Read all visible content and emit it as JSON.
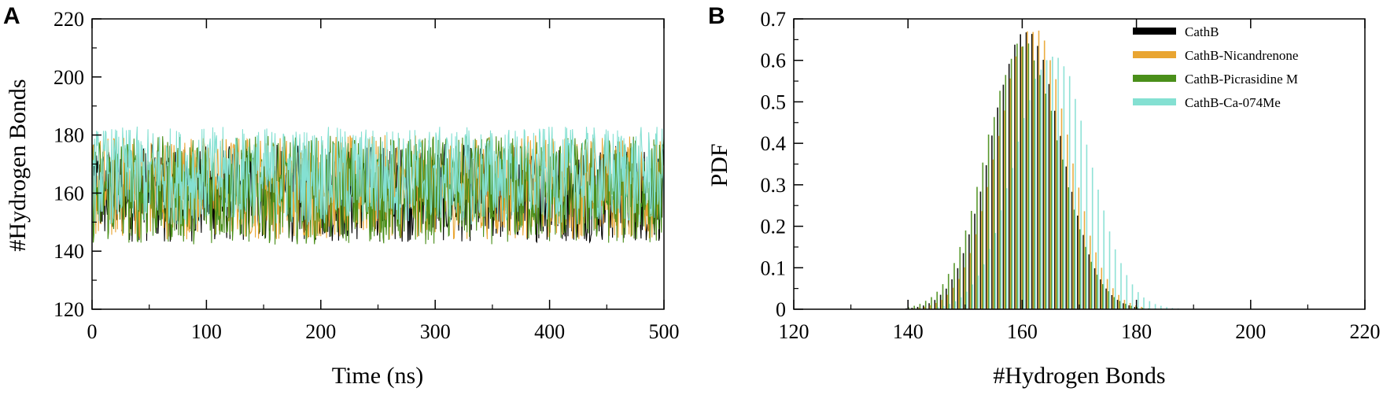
{
  "figure": {
    "panel_a_letter": "A",
    "panel_b_letter": "B"
  },
  "colors": {
    "CathB": "#000000",
    "CathB-Nicandrenone": "#e9a531",
    "CathB-Picrasidine M": "#4a8f1a",
    "CathB-Ca-074Me": "#84e0d2"
  },
  "chart_data": [
    {
      "panel": "A",
      "type": "line",
      "title": "",
      "xlabel": "Time (ns)",
      "ylabel": "#Hydrogen Bonds",
      "xlim": [
        0,
        500
      ],
      "ylim": [
        120,
        220
      ],
      "xticks": [
        0,
        100,
        200,
        300,
        400,
        500
      ],
      "yticks": [
        120,
        140,
        160,
        180,
        200,
        220
      ],
      "grid": false,
      "series": [
        {
          "name": "CathB",
          "mean": 160,
          "min": 136,
          "max": 183
        },
        {
          "name": "CathB-Nicandrenone",
          "mean": 162,
          "min": 139,
          "max": 189
        },
        {
          "name": "CathB-Picrasidine M",
          "mean": 161,
          "min": 137,
          "max": 189
        },
        {
          "name": "CathB-Ca-074Me",
          "mean": 166,
          "min": 146,
          "max": 193
        }
      ]
    },
    {
      "panel": "B",
      "type": "bar",
      "title": "",
      "xlabel": "#Hydrogen Bonds",
      "ylabel": "PDF",
      "xlim": [
        120,
        220
      ],
      "ylim": [
        0,
        0.7
      ],
      "xticks": [
        120,
        140,
        160,
        180,
        200,
        220
      ],
      "yticks": [
        0,
        0.1,
        0.2,
        0.3,
        0.4,
        0.5,
        0.6,
        0.7
      ],
      "yticklabels": [
        "0",
        "0.1",
        "0.2",
        "0.3",
        "0.4",
        "0.5",
        "0.6",
        "0.7"
      ],
      "grid": false,
      "legend_position": "top-right",
      "series": [
        {
          "name": "CathB",
          "peak_x": 161,
          "peak_pdf": 0.68,
          "x_range": [
            140,
            180
          ]
        },
        {
          "name": "CathB-Nicandrenone",
          "peak_x": 162,
          "peak_pdf": 0.69,
          "x_range": [
            141,
            181
          ]
        },
        {
          "name": "CathB-Picrasidine M",
          "peak_x": 160,
          "peak_pdf": 0.65,
          "x_range": [
            140,
            182
          ]
        },
        {
          "name": "CathB-Ca-074Me",
          "peak_x": 165,
          "peak_pdf": 0.63,
          "x_range": [
            145,
            187
          ]
        }
      ]
    }
  ]
}
